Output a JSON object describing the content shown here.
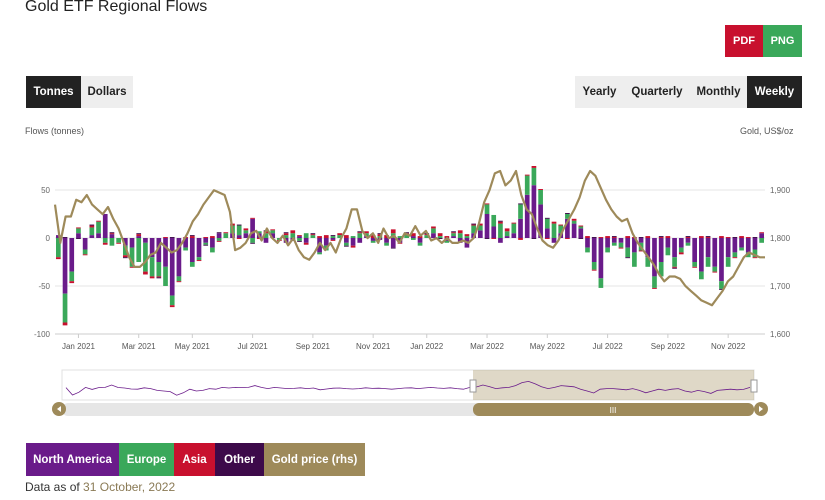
{
  "page": {
    "title": "Gold ETF Regional Flows",
    "export_buttons": {
      "pdf": "PDF",
      "png": "PNG"
    },
    "units": {
      "tonnes": "Tonnes",
      "dollars": "Dollars",
      "active": "Tonnes"
    },
    "periods": {
      "yearly": "Yearly",
      "quarterly": "Quarterly",
      "monthly": "Monthly",
      "weekly": "Weekly",
      "active": "Weekly"
    },
    "footer": {
      "prefix": "Data as of",
      "date": "31 October, 2022"
    }
  },
  "colors": {
    "north_america": "#6a1b8a",
    "europe": "#3aa85a",
    "asia": "#c8102e",
    "other": "#3d0a4a",
    "gold_price": "#9e8a5a",
    "grid": "#e6e6e6"
  },
  "chart_data": {
    "type": "bar",
    "left_axis_title": "Flows (tonnes)",
    "right_axis_title": "Gold, US$/oz",
    "ylim": [
      -100,
      100
    ],
    "yticks": [
      -100,
      -50,
      0,
      50
    ],
    "y2lim": [
      1600,
      1950
    ],
    "y2ticks": [
      "1,600",
      "1,700",
      "1,800",
      "1,900"
    ],
    "y2tick_values": [
      1600,
      1700,
      1800,
      1900
    ],
    "xtick_labels": [
      "Jan 2021",
      "Mar 2021",
      "May 2021",
      "Jul 2021",
      "Sep 2021",
      "Nov 2021",
      "Jan 2022",
      "Mar 2022",
      "May 2022",
      "Jul 2022",
      "Sep 2022",
      "Nov 2022"
    ],
    "xtick_weeks": [
      3,
      12,
      20,
      29,
      38,
      47,
      55,
      64,
      73,
      82,
      91,
      100
    ],
    "weeks": 106,
    "grid": true,
    "series": [
      {
        "name": "North America",
        "color": "#6a1b8a",
        "values": [
          3,
          -58,
          -35,
          5,
          -12,
          3,
          5,
          25,
          4,
          0,
          -8,
          -10,
          2,
          -5,
          -20,
          -25,
          -30,
          -60,
          -40,
          -10,
          -25,
          -20,
          -5,
          -10,
          5,
          0,
          5,
          3,
          5,
          20,
          5,
          -5,
          5,
          0,
          -5,
          -3,
          2,
          -5,
          0,
          -15,
          -8,
          -2,
          0,
          -5,
          -8,
          -5,
          2,
          -3,
          -2,
          -5,
          -10,
          -5,
          0,
          2,
          -5,
          0,
          5,
          0,
          -3,
          2,
          -5,
          -10,
          5,
          8,
          25,
          12,
          -5,
          2,
          5,
          20,
          45,
          55,
          35,
          10,
          -5,
          5,
          20,
          15,
          10,
          -10,
          -25,
          -42,
          -10,
          -5,
          -5,
          -10,
          -15,
          -5,
          -20,
          -40,
          -25,
          -10,
          -20,
          -10,
          -5,
          -25,
          -35,
          -20,
          -30,
          -45,
          -20,
          -15,
          -10,
          -15,
          -12,
          5
        ]
      },
      {
        "name": "Europe",
        "color": "#3aa85a",
        "values": [
          -20,
          -30,
          -10,
          5,
          -5,
          8,
          12,
          -5,
          -8,
          -5,
          -10,
          -20,
          -25,
          -30,
          -20,
          -15,
          -20,
          -10,
          -5,
          -3,
          -5,
          -3,
          -2,
          -5,
          -3,
          5,
          8,
          10,
          3,
          -5,
          2,
          5,
          3,
          -2,
          3,
          5,
          -3,
          5,
          3,
          -2,
          -5,
          2,
          3,
          -3,
          2,
          5,
          3,
          -2,
          2,
          -3,
          5,
          2,
          3,
          -2,
          -3,
          3,
          5,
          2,
          -2,
          3,
          5,
          2,
          8,
          5,
          10,
          12,
          15,
          5,
          10,
          15,
          20,
          18,
          15,
          10,
          15,
          8,
          5,
          3,
          2,
          -5,
          -8,
          -10,
          -5,
          -3,
          -5,
          -10,
          -15,
          -8,
          -10,
          -12,
          -15,
          -8,
          -10,
          -5,
          -3,
          -5,
          -8,
          -10,
          -5,
          -8,
          -10,
          -5,
          -3,
          -5,
          -8,
          -5
        ]
      },
      {
        "name": "Asia",
        "color": "#c8102e",
        "values": [
          -2,
          -3,
          -2,
          1,
          -1,
          2,
          1,
          -2,
          1,
          -1,
          -2,
          -1,
          2,
          -3,
          -2,
          -1,
          1,
          -2,
          -1,
          1,
          2,
          -1,
          1,
          2,
          -1,
          1,
          2,
          -1,
          2,
          1,
          -1,
          2,
          1,
          -1,
          2,
          3,
          1,
          -2,
          1,
          2,
          3,
          -1,
          2,
          3,
          -2,
          1,
          2,
          3,
          2,
          3,
          4,
          -1,
          2,
          3,
          2,
          1,
          2,
          3,
          2,
          1,
          3,
          2,
          1,
          2,
          1,
          -1,
          2,
          3,
          1,
          -2,
          1,
          2,
          1,
          -1,
          2,
          1,
          -1,
          2,
          1,
          2,
          -1,
          1,
          2,
          1,
          -1,
          2,
          1,
          -1,
          2,
          -1,
          1,
          2,
          -1,
          -2,
          1,
          -1,
          2,
          1,
          -1,
          2,
          1,
          -1,
          2,
          1,
          -1,
          1
        ]
      },
      {
        "name": "Other",
        "color": "#3d0a4a",
        "values": [
          0,
          1,
          0,
          -1,
          0,
          1,
          0,
          0,
          1,
          0,
          -1,
          0,
          1,
          0,
          0,
          -1,
          0,
          1,
          0,
          0,
          1,
          0,
          -1,
          0,
          1,
          0,
          0,
          1,
          0,
          -1,
          0,
          1,
          0,
          0,
          1,
          0,
          -1,
          0,
          1,
          0,
          0,
          1,
          0,
          -1,
          0,
          1,
          0,
          0,
          1,
          0,
          -1,
          0,
          1,
          0,
          0,
          1,
          0,
          -1,
          0,
          1,
          0,
          0,
          1,
          0,
          -1,
          0,
          1,
          0,
          0,
          1,
          0,
          -1,
          0,
          1,
          0,
          0,
          1,
          0,
          -1,
          0,
          1,
          0,
          0,
          1,
          0,
          -1,
          0,
          1,
          0,
          0,
          1,
          0,
          -1,
          0,
          1,
          0,
          0,
          1,
          0,
          -1,
          0,
          1,
          0,
          0,
          1
        ]
      },
      {
        "name": "Gold price (rhs)",
        "color": "#9e8a5a",
        "axis": "right",
        "type": "line",
        "values": [
          1870,
          1790,
          1845,
          1845,
          1880,
          1875,
          1890,
          1870,
          1860,
          1850,
          1865,
          1840,
          1820,
          1790,
          1760,
          1740,
          1740,
          1750,
          1765,
          1770,
          1790,
          1780,
          1770,
          1775,
          1790,
          1810,
          1835,
          1850,
          1870,
          1885,
          1900,
          1895,
          1890,
          1855,
          1775,
          1780,
          1790,
          1810,
          1815,
          1795,
          1820,
          1800,
          1790,
          1805,
          1785,
          1800,
          1775,
          1760,
          1755,
          1770,
          1790,
          1775,
          1790,
          1770,
          1800,
          1820,
          1860,
          1860,
          1815,
          1800,
          1810,
          1790,
          1820,
          1800,
          1805,
          1790,
          1810,
          1805,
          1825,
          1805,
          1815,
          1795,
          1800,
          1790,
          1800,
          1790,
          1790,
          1795,
          1790,
          1800,
          1830,
          1875,
          1900,
          1935,
          1940,
          1910,
          1920,
          1940,
          1890,
          1860,
          1850,
          1820,
          1795,
          1785,
          1780,
          1795,
          1820,
          1840,
          1860,
          1885,
          1920,
          1940,
          1930,
          1905,
          1880,
          1860,
          1845,
          1835,
          1840,
          1810,
          1790,
          1775,
          1760,
          1745,
          1725,
          1710,
          1720,
          1720,
          1715,
          1700,
          1690,
          1680,
          1670,
          1665,
          1660,
          1675,
          1690,
          1710,
          1720,
          1740,
          1760,
          1770,
          1765,
          1760,
          1760
        ]
      }
    ]
  },
  "legend": [
    {
      "label": "North America",
      "color": "#6a1b8a"
    },
    {
      "label": "Europe",
      "color": "#3aa85a"
    },
    {
      "label": "Asia",
      "color": "#c8102e"
    },
    {
      "label": "Other",
      "color": "#3d0a4a"
    },
    {
      "label": "Gold price (rhs)",
      "color": "#9e8a5a"
    }
  ],
  "navigator": {
    "scroll_handle_label": "III"
  }
}
